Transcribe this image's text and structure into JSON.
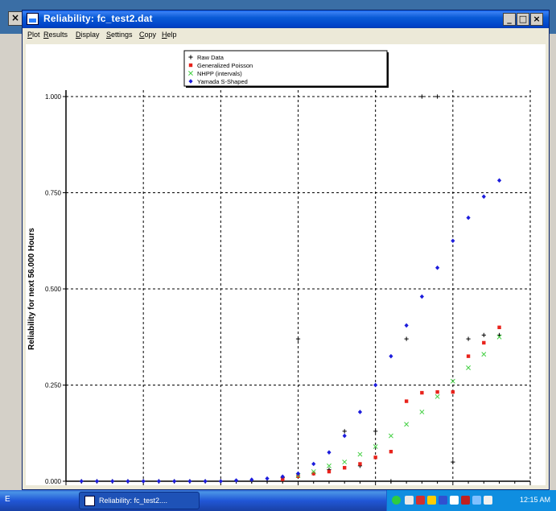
{
  "window": {
    "title": "Reliability:  fc_test2.dat",
    "minimize": "_",
    "maximize": "□",
    "close": "×"
  },
  "side_close": "×",
  "menu": [
    "Plot",
    "Results",
    "Display",
    "Settings",
    "Copy",
    "Help"
  ],
  "taskbar": {
    "left_text": "E",
    "task_label": "Reliability:  fc_test2....",
    "clock": "12:15 AM"
  },
  "colors": {
    "raw": "#000000",
    "poisson": "#e8231c",
    "nhpp": "#44d044",
    "yamada": "#1c1cdc",
    "grid": "#000000"
  },
  "chart_data": {
    "type": "scatter",
    "ylabel": "Reliability for next 56.000 Hours",
    "xlim": [
      0,
      30
    ],
    "ylim": [
      0,
      1
    ],
    "grid": true,
    "legend_position": "top-center",
    "x_ticks": [
      0,
      5,
      10,
      15,
      20,
      25,
      30
    ],
    "y_ticks": [
      "0.000",
      "0.250",
      "0.500",
      "0.750",
      "1.000"
    ],
    "y_tick_values": [
      0,
      0.25,
      0.5,
      0.75,
      1
    ],
    "series": [
      {
        "name": "Raw Data",
        "marker": "plus",
        "color": "#000000",
        "points": [
          [
            1,
            0.0
          ],
          [
            2,
            0.0
          ],
          [
            3,
            0.0
          ],
          [
            4,
            0.0
          ],
          [
            5,
            0.0
          ],
          [
            6,
            0.0
          ],
          [
            7,
            0.0
          ],
          [
            8,
            0.0
          ],
          [
            9,
            0.0
          ],
          [
            10,
            0.0
          ],
          [
            11,
            0.0
          ],
          [
            12,
            0.0
          ],
          [
            13,
            0.0
          ],
          [
            14,
            0.01
          ],
          [
            15,
            0.37
          ],
          [
            16,
            0.02
          ],
          [
            17,
            0.03
          ],
          [
            18,
            0.13
          ],
          [
            19,
            0.04
          ],
          [
            20,
            0.13
          ],
          [
            21,
            0.0
          ],
          [
            22,
            0.37
          ],
          [
            23,
            1.0
          ],
          [
            24,
            1.0
          ],
          [
            25,
            0.05
          ],
          [
            26,
            0.37
          ],
          [
            27,
            0.38
          ],
          [
            28,
            0.38
          ]
        ]
      },
      {
        "name": "Generalized Poisson",
        "marker": "square",
        "color": "#e8231c",
        "points": [
          [
            14,
            0.005
          ],
          [
            15,
            0.013
          ],
          [
            16,
            0.02
          ],
          [
            17,
            0.025
          ],
          [
            18,
            0.035
          ],
          [
            19,
            0.045
          ],
          [
            20,
            0.062
          ],
          [
            21,
            0.077
          ],
          [
            22,
            0.208
          ],
          [
            23,
            0.23
          ],
          [
            24,
            0.232
          ],
          [
            25,
            0.232
          ],
          [
            26,
            0.325
          ],
          [
            27,
            0.36
          ],
          [
            28,
            0.4
          ]
        ]
      },
      {
        "name": "NHPP (intervals)",
        "marker": "x",
        "color": "#44d044",
        "points": [
          [
            15,
            0.015
          ],
          [
            16,
            0.025
          ],
          [
            17,
            0.04
          ],
          [
            18,
            0.05
          ],
          [
            19,
            0.07
          ],
          [
            20,
            0.09
          ],
          [
            21,
            0.118
          ],
          [
            22,
            0.148
          ],
          [
            23,
            0.18
          ],
          [
            24,
            0.22
          ],
          [
            25,
            0.26
          ],
          [
            26,
            0.295
          ],
          [
            27,
            0.33
          ],
          [
            28,
            0.375
          ]
        ]
      },
      {
        "name": "Yamada S-Shaped",
        "marker": "diamond",
        "color": "#1c1cdc",
        "points": [
          [
            1,
            0.0
          ],
          [
            2,
            0.0
          ],
          [
            3,
            0.0
          ],
          [
            4,
            0.0
          ],
          [
            5,
            0.0
          ],
          [
            6,
            0.0
          ],
          [
            7,
            0.0
          ],
          [
            8,
            0.0
          ],
          [
            9,
            0.0
          ],
          [
            10,
            0.0
          ],
          [
            11,
            0.002
          ],
          [
            12,
            0.004
          ],
          [
            13,
            0.007
          ],
          [
            14,
            0.012
          ],
          [
            15,
            0.02
          ],
          [
            16,
            0.045
          ],
          [
            17,
            0.075
          ],
          [
            18,
            0.118
          ],
          [
            19,
            0.18
          ],
          [
            20,
            0.25
          ],
          [
            21,
            0.325
          ],
          [
            22,
            0.405
          ],
          [
            23,
            0.48
          ],
          [
            24,
            0.555
          ],
          [
            25,
            0.625
          ],
          [
            26,
            0.685
          ],
          [
            27,
            0.74
          ],
          [
            28,
            0.782
          ]
        ]
      }
    ]
  }
}
